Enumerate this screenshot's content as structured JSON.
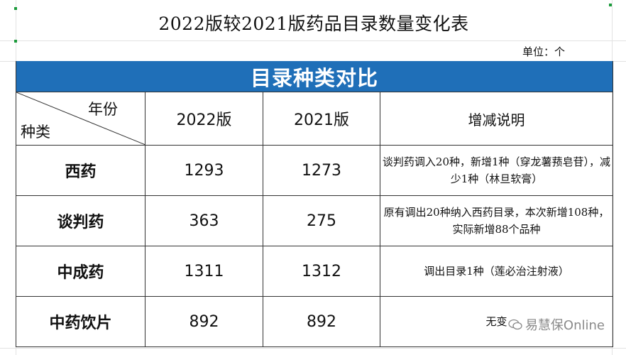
{
  "title": "2022版较2021版药品目录数量变化表",
  "unit_label": "单位：个",
  "banner": "目录种类对比",
  "header": {
    "diag_top": "年份",
    "diag_bottom": "种类",
    "col_2022": "2022版",
    "col_2021": "2021版",
    "col_note": "增减说明"
  },
  "rows": [
    {
      "category": "西药",
      "v2022": "1293",
      "v2021": "1273",
      "note": "谈判药调入20种，新增1种（穿龙薯蓣皂苷），减少1种（林旦软膏）"
    },
    {
      "category": "谈判药",
      "v2022": "363",
      "v2021": "275",
      "note": "原有调出20种纳入西药目录，本次新增108种，实际新增88个品种"
    },
    {
      "category": "中成药",
      "v2022": "1311",
      "v2021": "1312",
      "note": "调出目录1种（莲必治注射液）"
    },
    {
      "category": "中药饮片",
      "v2022": "892",
      "v2021": "892",
      "note": "无变"
    }
  ],
  "watermark": "易慧保Online",
  "colors": {
    "banner": "#1f6fb8",
    "banner_text": "#ffffff",
    "border": "#333333"
  }
}
